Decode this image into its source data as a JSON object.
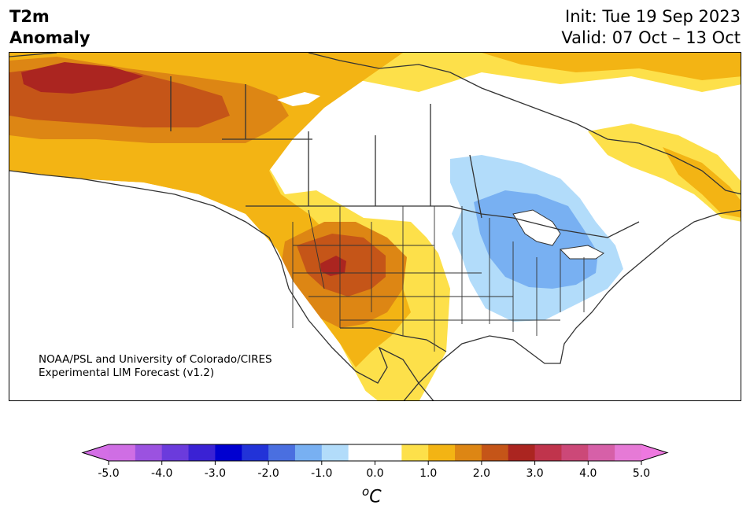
{
  "header": {
    "title_line1": "T2m",
    "title_line2": "Anomaly",
    "init_text": "Init: Tue 19 Sep 2023",
    "valid_text": "Valid: 07 Oct – 13 Oct"
  },
  "map": {
    "region": "North America",
    "credit_line1": "NOAA/PSL and University of Colorado/CIRES",
    "credit_line2": "Experimental LIM Forecast (v1.2)"
  },
  "colorbar": {
    "ticks": [
      "-5.0",
      "-4.0",
      "-3.0",
      "-2.0",
      "-1.0",
      "0.0",
      "1.0",
      "2.0",
      "3.0",
      "4.0",
      "5.0"
    ],
    "unit_prefix": "o",
    "unit_letter": "C",
    "colors": [
      "#cf6ee4",
      "#9b52e0",
      "#6b3bdc",
      "#3a22d4",
      "#0000d0",
      "#2233d8",
      "#4a6fe0",
      "#78b0f2",
      "#b2dcfa",
      "#ffffff",
      "#ffffff",
      "#fde04a",
      "#f3b414",
      "#dd8614",
      "#c55518",
      "#ab2520",
      "#c0344c",
      "#cc4878",
      "#d660a8",
      "#e67ad6"
    ],
    "under_color": "#d46ee6",
    "over_color": "#ee78e0"
  }
}
